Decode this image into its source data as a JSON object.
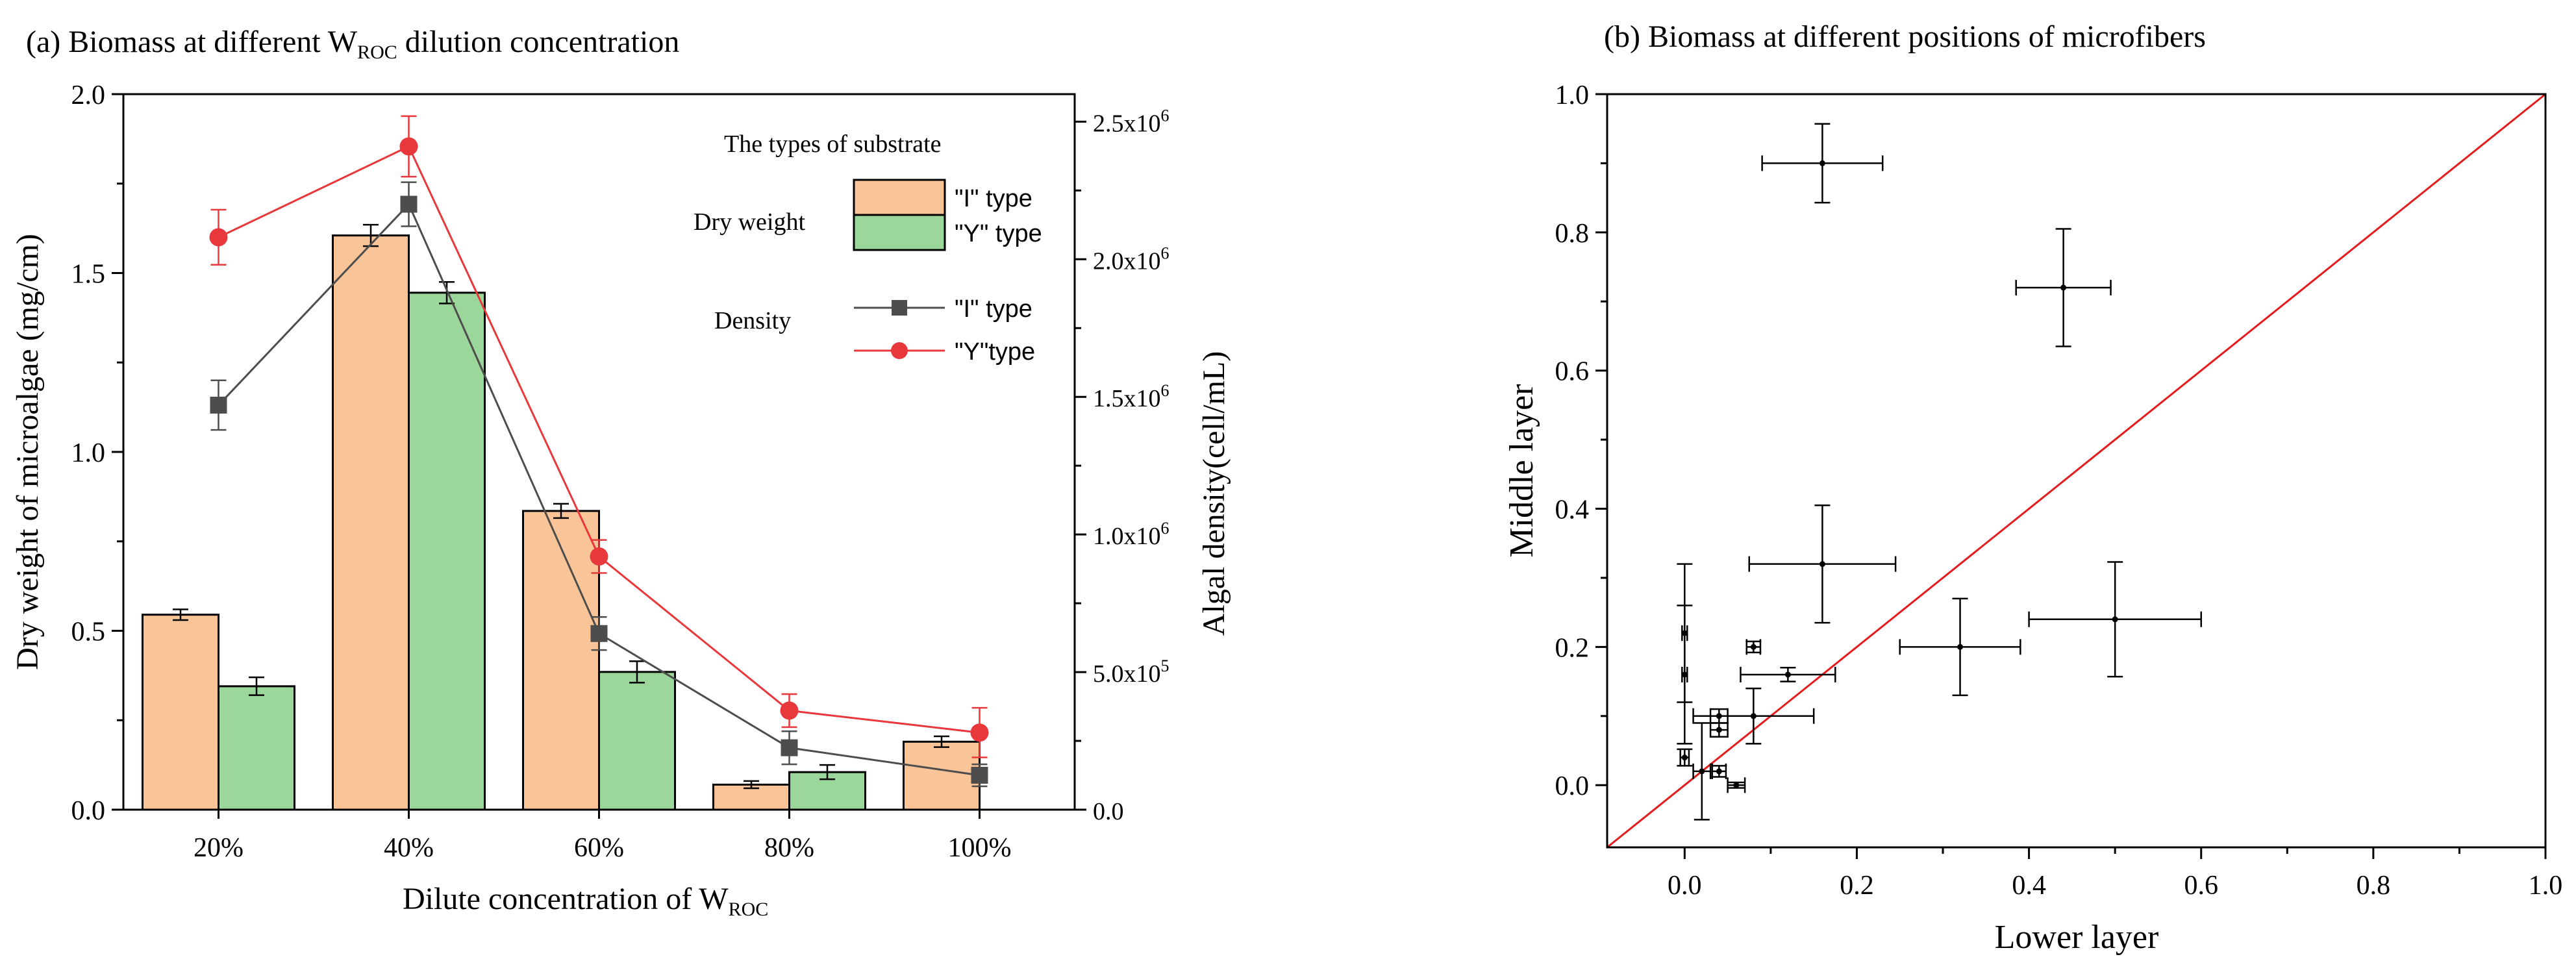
{
  "colors": {
    "bar_I": "#f9c598",
    "bar_Y": "#9bd79b",
    "line_I": "#4d4d4d",
    "line_Y": "#e8383b",
    "diag": "#e41a1c",
    "axis": "#000000"
  },
  "chart_data": [
    {
      "type": "bar",
      "title_prefix": "(a) Biomass at different W",
      "title_sub": "ROC",
      "title_suffix": " dilution concentration",
      "xlabel_prefix": "Dilute concentration of W",
      "xlabel_sub": "ROC",
      "ylabel": "Dry weight of microalgae (mg/cm)",
      "y2label": "Algal density(cell/mL)",
      "categories": [
        "20%",
        "40%",
        "60%",
        "80%",
        "100%"
      ],
      "ylim": [
        0,
        2.0
      ],
      "yticks": [
        "0.0",
        "0.5",
        "1.0",
        "1.5",
        "2.0"
      ],
      "y2lim": [
        0,
        2600000
      ],
      "y2ticks": [
        {
          "base": "0.0",
          "exp": ""
        },
        {
          "base": "5.0x10",
          "exp": "5"
        },
        {
          "base": "1.0x10",
          "exp": "6"
        },
        {
          "base": "1.5x10",
          "exp": "6"
        },
        {
          "base": "2.0x10",
          "exp": "6"
        },
        {
          "base": "2.5x10",
          "exp": "6"
        }
      ],
      "series": [
        {
          "name": "\"I\" type",
          "group": "Dry weight",
          "values": [
            0.545,
            1.605,
            0.835,
            0.07,
            0.19
          ],
          "errors": [
            0.015,
            0.03,
            0.02,
            0.01,
            0.015
          ]
        },
        {
          "name": "\"Y\" type",
          "group": "Dry weight",
          "values": [
            0.345,
            1.445,
            0.385,
            0.105,
            null
          ],
          "errors": [
            0.025,
            0.03,
            0.03,
            0.02,
            null
          ]
        },
        {
          "name": "\"I\" type",
          "group": "Density",
          "values": [
            1470000,
            2200000,
            640000,
            225000,
            125000
          ],
          "errors": [
            90000,
            80000,
            60000,
            60000,
            40000
          ]
        },
        {
          "name": "\"Y\"type",
          "group": "Density",
          "values": [
            2080000,
            2410000,
            920000,
            360000,
            280000
          ],
          "errors": [
            100000,
            110000,
            60000,
            60000,
            90000
          ]
        }
      ],
      "legend": {
        "title": "The types of substrate",
        "group1": "Dry weight",
        "group2": "Density",
        "position": "top-right"
      }
    },
    {
      "type": "scatter",
      "title": "(b) Biomass at different positions of microfibers",
      "xlabel": "Lower layer",
      "ylabel": "Middle layer",
      "xlim": [
        -0.09,
        1.0
      ],
      "ylim": [
        -0.09,
        1.0
      ],
      "xticks": [
        "0.0",
        "0.2",
        "0.4",
        "0.6",
        "0.8",
        "1.0"
      ],
      "yticks": [
        "0.0",
        "0.2",
        "0.4",
        "0.6",
        "0.8",
        "1.0"
      ],
      "reference_line": "y = x",
      "points": [
        {
          "x": 0.16,
          "y": 0.9,
          "xerr": 0.07,
          "yerr": 0.057
        },
        {
          "x": 0.44,
          "y": 0.72,
          "xerr": 0.055,
          "yerr": 0.085
        },
        {
          "x": 0.16,
          "y": 0.32,
          "xerr": 0.085,
          "yerr": 0.085
        },
        {
          "x": 0.5,
          "y": 0.24,
          "xerr": 0.1,
          "yerr": 0.083
        },
        {
          "x": 0.32,
          "y": 0.2,
          "xerr": 0.07,
          "yerr": 0.07
        },
        {
          "x": 0.0,
          "y": 0.22,
          "xerr": 0.003,
          "yerr": 0.1
        },
        {
          "x": 0.0,
          "y": 0.16,
          "xerr": 0.003,
          "yerr": 0.1
        },
        {
          "x": 0.08,
          "y": 0.2,
          "xerr": 0.008,
          "yerr": 0.008
        },
        {
          "x": 0.12,
          "y": 0.16,
          "xerr": 0.055,
          "yerr": 0.01
        },
        {
          "x": 0.08,
          "y": 0.1,
          "xerr": 0.07,
          "yerr": 0.04
        },
        {
          "x": 0.04,
          "y": 0.1,
          "xerr": 0.01,
          "yerr": 0.01
        },
        {
          "x": 0.04,
          "y": 0.08,
          "xerr": 0.01,
          "yerr": 0.01
        },
        {
          "x": 0.0,
          "y": 0.04,
          "xerr": 0.005,
          "yerr": 0.012
        },
        {
          "x": 0.02,
          "y": 0.02,
          "xerr": 0.01,
          "yerr": 0.07
        },
        {
          "x": 0.04,
          "y": 0.02,
          "xerr": 0.008,
          "yerr": 0.008
        },
        {
          "x": 0.06,
          "y": 0.0,
          "xerr": 0.01,
          "yerr": 0.004
        }
      ]
    }
  ]
}
